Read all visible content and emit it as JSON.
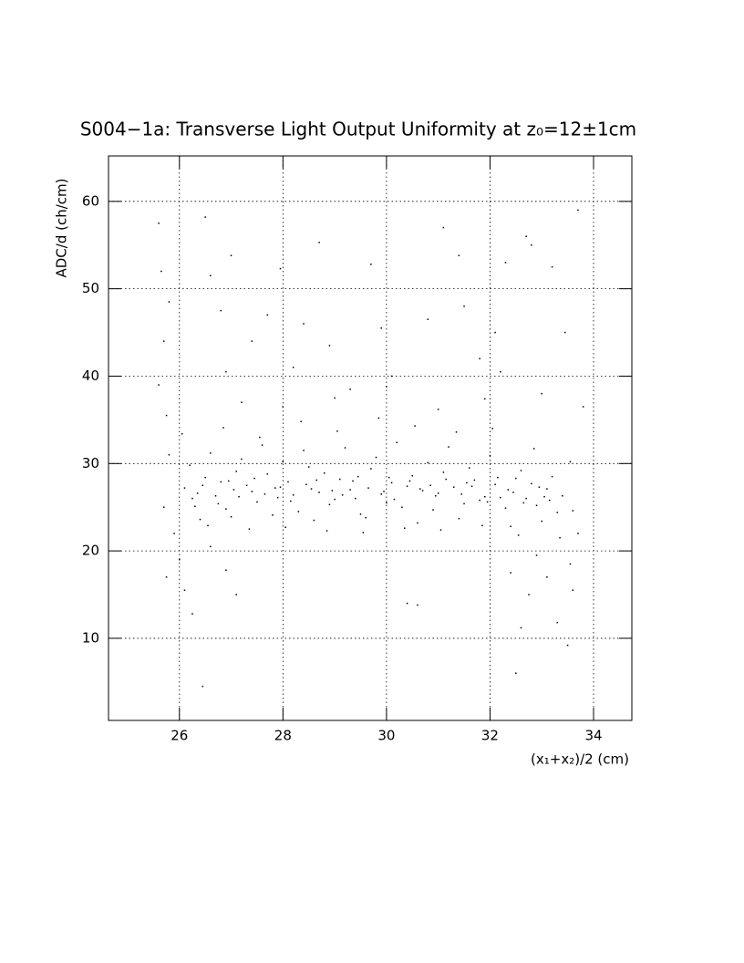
{
  "chart_data": {
    "type": "scatter",
    "title": "S004−1a: Transverse Light Output Uniformity at z₀=12±1cm",
    "x_label": "(x₁+x₂)/2 (cm)",
    "y_label": "ADC/d (ch/cm)",
    "color": "#000000",
    "grid": true,
    "xlim": [
      24.63,
      34.74
    ],
    "ylim": [
      0.6,
      65.2
    ],
    "xticks": [
      26,
      28,
      30,
      32,
      34
    ],
    "yticks": [
      10,
      20,
      30,
      40,
      50,
      60
    ],
    "x": [
      26.1,
      26.3,
      26.5,
      26.7,
      26.9,
      27.1,
      27.3,
      27.5,
      27.7,
      27.9,
      28.1,
      28.3,
      28.5,
      28.7,
      28.9,
      29.1,
      29.3,
      29.5,
      29.7,
      29.9,
      30.1,
      30.3,
      30.5,
      30.7,
      30.9,
      31.1,
      31.3,
      31.5,
      31.7,
      31.9,
      32.1,
      32.3,
      32.5,
      32.7,
      32.9,
      33.1,
      33.3,
      26.2,
      26.4,
      26.6,
      26.8,
      27.0,
      27.2,
      27.4,
      27.6,
      27.8,
      28.0,
      28.2,
      28.4,
      28.6,
      28.8,
      29.0,
      29.2,
      29.4,
      29.6,
      29.8,
      30.0,
      30.2,
      30.4,
      30.6,
      30.8,
      31.0,
      31.2,
      31.4,
      31.6,
      31.8,
      32.0,
      32.2,
      32.4,
      32.6,
      32.8,
      33.0,
      33.2,
      33.4,
      33.6,
      26.05,
      26.35,
      26.55,
      26.85,
      27.05,
      27.35,
      27.55,
      27.85,
      28.05,
      28.35,
      28.55,
      28.85,
      29.05,
      29.35,
      29.55,
      29.85,
      30.05,
      30.35,
      30.55,
      30.85,
      31.05,
      31.35,
      31.55,
      31.85,
      32.05,
      32.35,
      32.55,
      32.85,
      33.05,
      33.35,
      33.55,
      26.25,
      26.45,
      26.75,
      26.95,
      27.15,
      27.45,
      27.65,
      27.95,
      28.15,
      28.45,
      28.65,
      28.95,
      29.15,
      29.45,
      29.65,
      29.95,
      30.15,
      30.45,
      30.65,
      30.95,
      31.15,
      31.45,
      31.65,
      31.95,
      32.15,
      32.45,
      32.65,
      32.95,
      33.15,
      25.6,
      25.65,
      25.8,
      25.7,
      25.6,
      25.75,
      25.8,
      25.7,
      25.75,
      25.9,
      26.0,
      26.1,
      26.25,
      26.45,
      26.5,
      26.6,
      26.8,
      27.0,
      26.9,
      27.4,
      27.7,
      27.95,
      28.2,
      28.4,
      28.7,
      28.9,
      29.3,
      29.7,
      29.9,
      30.1,
      30.4,
      30.6,
      30.8,
      31.1,
      31.4,
      31.5,
      31.8,
      32.1,
      32.3,
      32.5,
      32.6,
      32.7,
      32.8,
      32.75,
      32.4,
      33.0,
      33.2,
      33.3,
      33.5,
      33.6,
      33.55,
      33.45,
      33.7,
      33.8,
      33.7,
      32.9,
      33.1,
      32.2,
      27.2,
      28.0,
      29.0,
      30.0,
      31.0,
      31.9,
      26.9,
      27.1,
      26.6
    ],
    "values": [
      27.2,
      25.1,
      28.4,
      26.3,
      24.8,
      29.1,
      27.5,
      25.6,
      28.8,
      26.1,
      27.9,
      24.5,
      29.6,
      26.7,
      25.3,
      28.2,
      27.0,
      24.2,
      29.4,
      26.5,
      27.8,
      25.0,
      28.6,
      26.9,
      24.7,
      29.0,
      27.3,
      25.4,
      28.1,
      26.2,
      27.6,
      24.9,
      28.3,
      26.0,
      25.2,
      27.1,
      24.4,
      29.8,
      23.6,
      31.2,
      27.9,
      23.9,
      30.5,
      26.8,
      32.1,
      24.1,
      30.2,
      26.4,
      31.5,
      23.5,
      28.9,
      25.9,
      31.8,
      26.0,
      23.8,
      30.7,
      25.5,
      32.4,
      27.4,
      23.2,
      30.1,
      26.6,
      31.9,
      23.7,
      29.5,
      25.8,
      30.9,
      26.1,
      22.8,
      29.2,
      27.7,
      23.4,
      28.5,
      26.3,
      24.6,
      33.4,
      26.6,
      22.9,
      34.1,
      27.0,
      22.5,
      33.0,
      27.2,
      22.7,
      34.8,
      27.1,
      22.3,
      33.7,
      28.0,
      22.1,
      35.2,
      28.4,
      22.6,
      34.3,
      27.5,
      22.4,
      33.6,
      27.8,
      22.9,
      34.0,
      27.0,
      21.8,
      31.7,
      26.2,
      21.5,
      30.2,
      26.0,
      27.5,
      25.4,
      28.0,
      26.2,
      28.3,
      26.5,
      27.3,
      25.7,
      27.6,
      28.1,
      26.9,
      26.4,
      28.5,
      27.2,
      26.8,
      25.9,
      28.0,
      27.1,
      26.3,
      28.2,
      26.5,
      27.4,
      25.6,
      28.4,
      26.7,
      25.5,
      27.3,
      25.8,
      57.5,
      52.0,
      48.5,
      44.0,
      39.0,
      35.5,
      31.0,
      25.0,
      17.0,
      22.0,
      19.0,
      15.5,
      12.8,
      4.5,
      58.2,
      51.5,
      47.5,
      53.8,
      40.5,
      44.0,
      47.0,
      52.3,
      41.0,
      46.0,
      55.3,
      43.5,
      38.5,
      52.8,
      45.5,
      40.0,
      14.0,
      13.8,
      46.5,
      57.0,
      53.8,
      48.0,
      42.0,
      45.0,
      53.0,
      6.0,
      11.2,
      56.0,
      55.0,
      15.0,
      17.5,
      38.0,
      52.5,
      11.8,
      9.2,
      15.5,
      18.5,
      45.0,
      59.0,
      36.5,
      22.0,
      19.5,
      17.0,
      40.5,
      37.0,
      36.5,
      37.5,
      38.8,
      36.2,
      37.4,
      17.8,
      15.0,
      20.5
    ]
  }
}
